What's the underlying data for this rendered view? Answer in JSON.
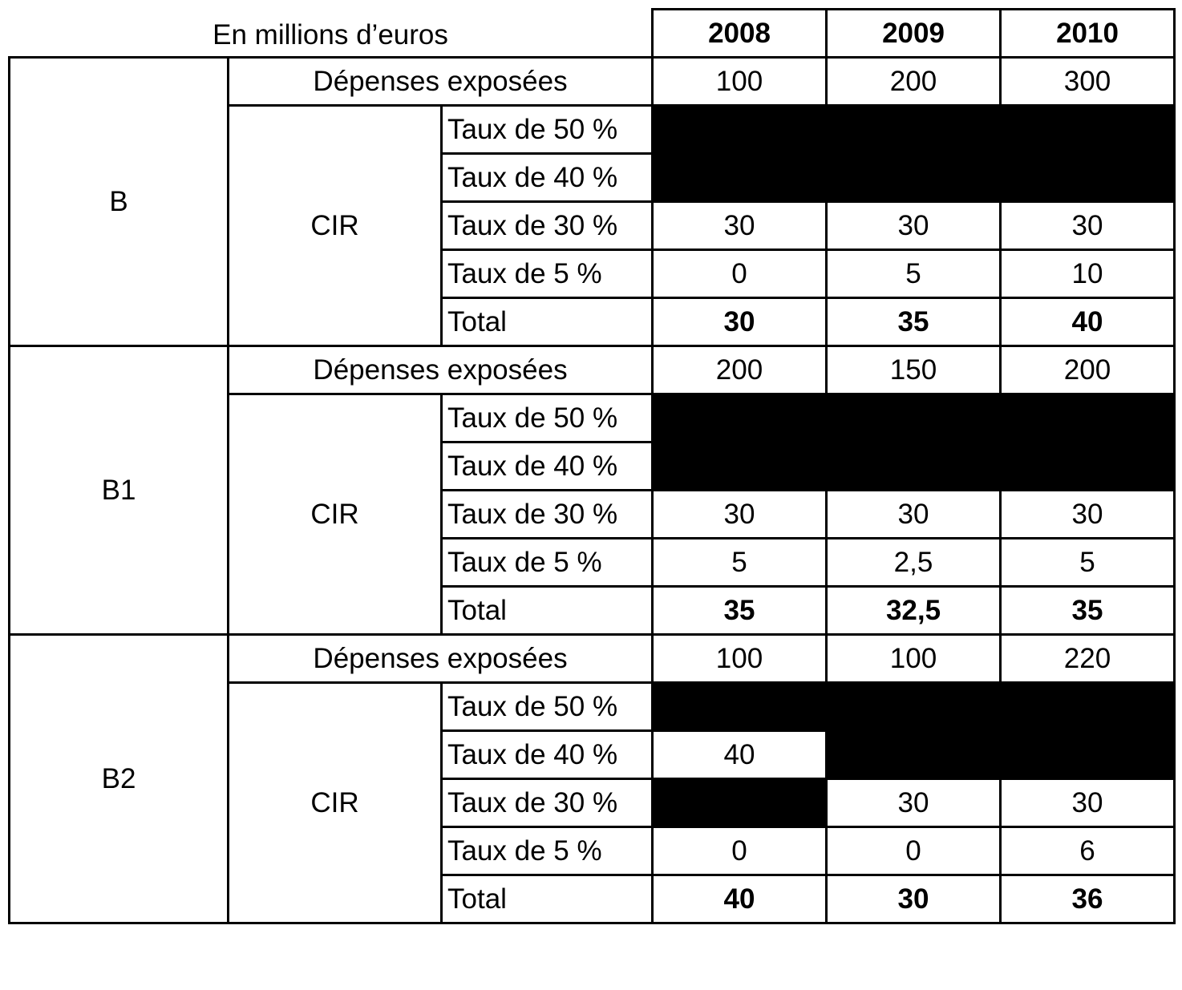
{
  "table": {
    "caption": "En millions d’euros",
    "years": [
      "2008",
      "2009",
      "2010"
    ],
    "groups": [
      {
        "name": "B",
        "expenses_label": "Dépenses exposées",
        "expenses": [
          "100",
          "200",
          "300"
        ],
        "cir_label": "CIR",
        "rates": [
          {
            "label": "Taux de 50 %",
            "values": [
              null,
              null,
              null
            ]
          },
          {
            "label": "Taux de 40 %",
            "values": [
              null,
              null,
              null
            ]
          },
          {
            "label": "Taux de 30 %",
            "values": [
              "30",
              "30",
              "30"
            ]
          },
          {
            "label": "Taux de 5 %",
            "values": [
              "0",
              "5",
              "10"
            ]
          }
        ],
        "total_label": "Total",
        "totals": [
          "30",
          "35",
          "40"
        ]
      },
      {
        "name": "B1",
        "expenses_label": "Dépenses exposées",
        "expenses": [
          "200",
          "150",
          "200"
        ],
        "cir_label": "CIR",
        "rates": [
          {
            "label": "Taux de 50 %",
            "values": [
              null,
              null,
              null
            ]
          },
          {
            "label": "Taux de 40 %",
            "values": [
              null,
              null,
              null
            ]
          },
          {
            "label": "Taux de 30 %",
            "values": [
              "30",
              "30",
              "30"
            ]
          },
          {
            "label": "Taux de 5 %",
            "values": [
              "5",
              "2,5",
              "5"
            ]
          }
        ],
        "total_label": "Total",
        "totals": [
          "35",
          "32,5",
          "35"
        ]
      },
      {
        "name": "B2",
        "expenses_label": "Dépenses exposées",
        "expenses": [
          "100",
          "100",
          "220"
        ],
        "cir_label": "CIR",
        "rates": [
          {
            "label": "Taux de 50 %",
            "values": [
              null,
              null,
              null
            ]
          },
          {
            "label": "Taux de 40 %",
            "values": [
              "40",
              null,
              null
            ]
          },
          {
            "label": "Taux de 30 %",
            "values": [
              null,
              "30",
              "30"
            ]
          },
          {
            "label": "Taux de 5 %",
            "values": [
              "0",
              "0",
              "6"
            ]
          }
        ],
        "total_label": "Total",
        "totals": [
          "40",
          "30",
          "36"
        ]
      }
    ],
    "colors": {
      "blocked_cell": "#000000",
      "border": "#000000",
      "background": "#ffffff"
    }
  }
}
